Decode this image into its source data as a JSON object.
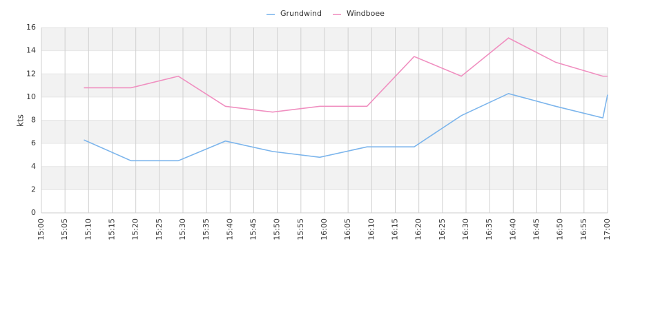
{
  "chart_data": {
    "type": "line",
    "y_label": "kts",
    "x": [
      "15:09",
      "15:19",
      "15:29",
      "15:39",
      "15:49",
      "15:59",
      "16:09",
      "16:19",
      "16:29",
      "16:39",
      "16:49",
      "16:59",
      "17:00"
    ],
    "series": [
      {
        "name": "Grundwind",
        "color": "#7cb5ec",
        "values": [
          6.3,
          4.5,
          4.5,
          6.2,
          5.3,
          4.8,
          5.7,
          5.7,
          8.4,
          10.3,
          9.2,
          8.2,
          10.2
        ]
      },
      {
        "name": "Windboee",
        "color": "#f08fc0",
        "values": [
          10.8,
          10.8,
          11.8,
          9.2,
          8.7,
          9.2,
          9.2,
          13.5,
          11.8,
          15.1,
          13.0,
          11.8,
          11.8
        ]
      }
    ],
    "xlim": [
      "15:00",
      "17:00"
    ],
    "xticks": [
      "15:00",
      "15:05",
      "15:10",
      "15:15",
      "15:20",
      "15:25",
      "15:30",
      "15:35",
      "15:40",
      "15:45",
      "15:50",
      "15:55",
      "16:00",
      "16:05",
      "16:10",
      "16:15",
      "16:20",
      "16:25",
      "16:30",
      "16:35",
      "16:40",
      "16:45",
      "16:50",
      "16:55",
      "17:00"
    ],
    "ylim": [
      0,
      16
    ],
    "yticks": [
      0,
      2,
      4,
      6,
      8,
      10,
      12,
      14,
      16
    ],
    "grid": true,
    "legend": "top"
  }
}
